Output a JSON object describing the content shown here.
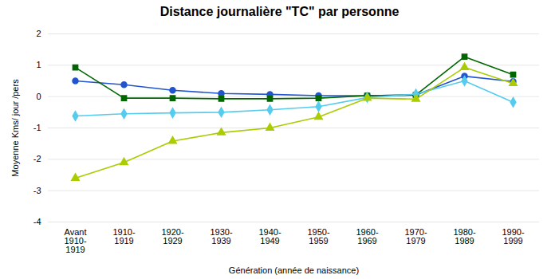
{
  "chart_data": {
    "type": "line",
    "title": "Distance journalière \"TC\" par personne",
    "xlabel": "Génération (année de naissance)",
    "ylabel": "Moyenne Kms/ jour /pers",
    "categories": [
      "Avant\n1910-\n1919",
      "1910-\n1919",
      "1920-\n1929",
      "1930-\n1939",
      "1940-\n1949",
      "1950-\n1959",
      "1960-\n1969",
      "1970-\n1979",
      "1980-\n1989",
      "1990-\n1999"
    ],
    "series": [
      {
        "color": "#2255cc",
        "marker": "circle",
        "values": [
          0.5,
          0.38,
          0.2,
          0.1,
          0.07,
          0.03,
          0.03,
          0.05,
          0.65,
          0.48
        ]
      },
      {
        "color": "#006600",
        "marker": "square",
        "values": [
          0.93,
          -0.05,
          -0.05,
          -0.07,
          -0.07,
          -0.05,
          0.03,
          0.05,
          1.27,
          0.7
        ]
      },
      {
        "color": "#55ccee",
        "marker": "diamond",
        "values": [
          -0.62,
          -0.55,
          -0.52,
          -0.5,
          -0.42,
          -0.32,
          -0.03,
          0.08,
          0.5,
          -0.18
        ]
      },
      {
        "color": "#aacc00",
        "marker": "triangle",
        "values": [
          -2.6,
          -2.1,
          -1.42,
          -1.15,
          -1.0,
          -0.65,
          -0.05,
          -0.08,
          0.93,
          0.42
        ]
      }
    ],
    "ylim": [
      -4,
      2
    ],
    "yticks": [
      -4,
      -3,
      -2,
      -1,
      0,
      1,
      2
    ],
    "grid": true
  }
}
